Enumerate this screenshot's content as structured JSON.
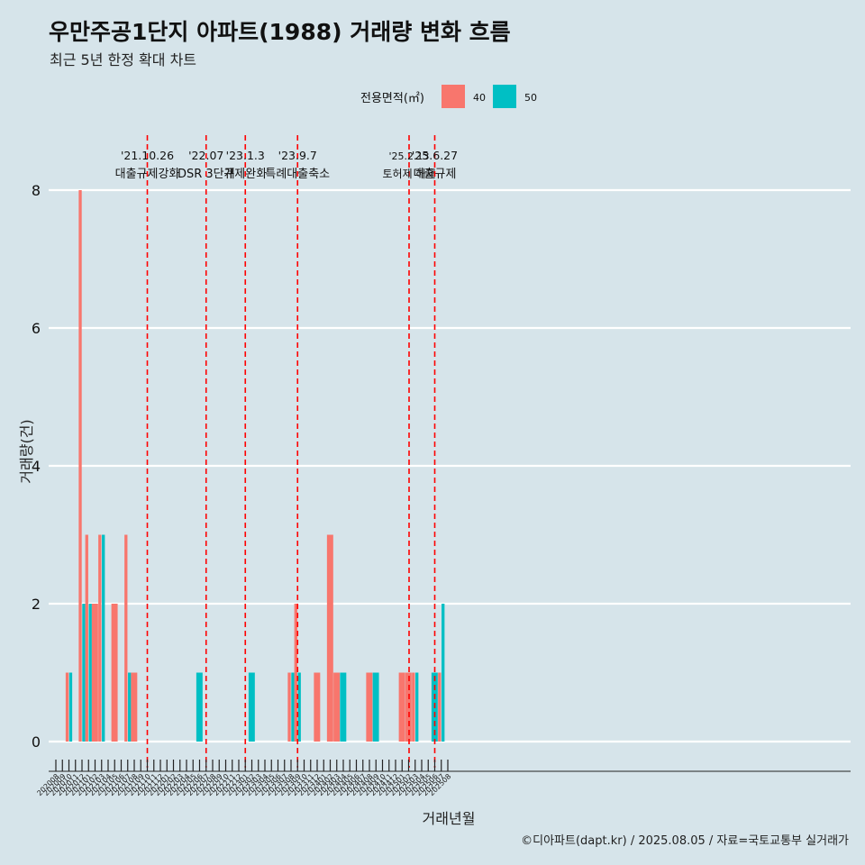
{
  "title": "우만주공1단지 아파트(1988) 거래량 변화 흐름",
  "subtitle": "최근 5년 한정 확대 차트",
  "caption": "©디아파트(dapt.kr) / 2025.08.05 / 자료=국토교통부 실거래가",
  "colors": {
    "background": "#d6e4ea",
    "series_40": "#f8766d",
    "series_50": "#00bfc4",
    "event_line": "#ff0000",
    "grid": "#ffffff"
  },
  "chart_data": {
    "type": "bar",
    "xlabel": "거래년월",
    "ylabel": "거래량(건)",
    "ylim": [
      0,
      8.6
    ],
    "yticks": [
      0,
      2,
      4,
      6,
      8
    ],
    "grid": "horizontal major lines",
    "legend": {
      "title": "전용면적(㎡)",
      "placement": "top-center"
    },
    "categories": [
      "202008",
      "202009",
      "202010",
      "202011",
      "202012",
      "202101",
      "202102",
      "202103",
      "202104",
      "202105",
      "202106",
      "202107",
      "202108",
      "202109",
      "202110",
      "202111",
      "202112",
      "202201",
      "202202",
      "202203",
      "202204",
      "202205",
      "202206",
      "202207",
      "202208",
      "202209",
      "202210",
      "202211",
      "202212",
      "202301",
      "202302",
      "202303",
      "202304",
      "202305",
      "202306",
      "202307",
      "202308",
      "202309",
      "202310",
      "202311",
      "202312",
      "202401",
      "202402",
      "202403",
      "202404",
      "202405",
      "202406",
      "202407",
      "202408",
      "202409",
      "202410",
      "202411",
      "202412",
      "202501",
      "202502",
      "202503",
      "202504",
      "202505",
      "202506",
      "202507",
      "202508"
    ],
    "series": [
      {
        "name": "40",
        "values": [
          0,
          0,
          1,
          0,
          8,
          3,
          2,
          3,
          0,
          2,
          0,
          3,
          1,
          0,
          0,
          0,
          0,
          0,
          0,
          0,
          0,
          0,
          0,
          0,
          0,
          0,
          0,
          0,
          0,
          0,
          0,
          0,
          0,
          0,
          0,
          0,
          1,
          2,
          0,
          0,
          1,
          0,
          3,
          1,
          0,
          0,
          0,
          0,
          1,
          0,
          0,
          0,
          0,
          1,
          1,
          1,
          0,
          0,
          0,
          1,
          0
        ]
      },
      {
        "name": "50",
        "values": [
          0,
          0,
          1,
          0,
          2,
          2,
          0,
          3,
          0,
          0,
          0,
          1,
          0,
          0,
          0,
          0,
          0,
          0,
          0,
          0,
          0,
          0,
          1,
          0,
          0,
          0,
          0,
          0,
          0,
          0,
          1,
          0,
          0,
          0,
          0,
          0,
          1,
          1,
          0,
          0,
          0,
          0,
          0,
          0,
          1,
          0,
          0,
          0,
          0,
          1,
          0,
          0,
          0,
          0,
          0,
          1,
          0,
          0,
          1,
          2,
          0
        ]
      }
    ],
    "events": [
      {
        "x": "202110",
        "date": "'21.10.26",
        "label": "대출규제강화"
      },
      {
        "x": "202207",
        "date": "'22.07",
        "label": "DSR 3단계"
      },
      {
        "x": "202301",
        "date": "'23.1.3",
        "label": "규제완화"
      },
      {
        "x": "202309",
        "date": "'23.9.7",
        "label": "특례대출축소"
      },
      {
        "x": "202502",
        "date": "'25.2.13",
        "label": "토허제 해제"
      },
      {
        "x": "202506",
        "date": "'25.6.27",
        "label": "대출규제"
      }
    ]
  }
}
